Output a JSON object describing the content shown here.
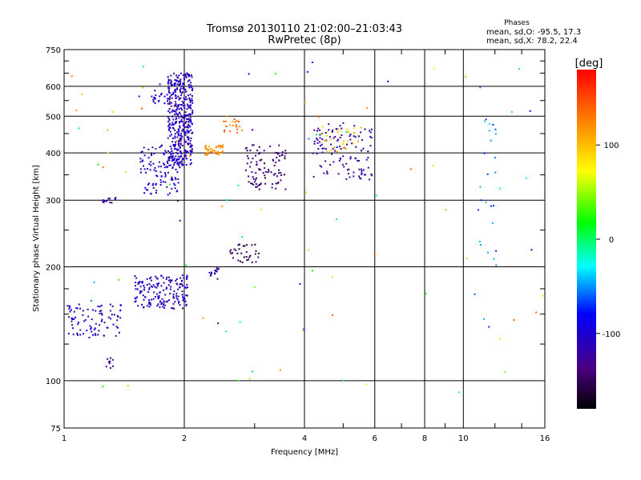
{
  "chart_data": {
    "type": "scatter",
    "title": "Tromsø 20130110 21:02:00–21:03:43",
    "subtitle": "RwPretec (8p)",
    "xlabel": "Frequency [MHz]",
    "ylabel": "Stationary phase Virtual Height [km]",
    "x_scale": "log",
    "y_scale": "log",
    "xlim": [
      1,
      16
    ],
    "ylim": [
      75,
      750
    ],
    "grid": true,
    "x_ticks": [
      1,
      2,
      4,
      6,
      8,
      10,
      16
    ],
    "x_tick_labels": [
      "1",
      "2",
      "4",
      "6",
      "8",
      "10",
      "16"
    ],
    "y_ticks": [
      75,
      100,
      200,
      300,
      400,
      500,
      600,
      750
    ],
    "y_tick_labels": [
      "75",
      "100",
      "200",
      "300",
      "400",
      "500",
      "600",
      "750"
    ],
    "phase_stats": {
      "heading": "Phases",
      "line_o": "mean, sd,O: -95.5, 17.3",
      "line_x": "mean, sd,X:  78.2, 22.4"
    },
    "colorbar": {
      "label": "[deg]",
      "range": [
        -180,
        180
      ],
      "ticks": [
        100,
        0,
        -100
      ],
      "tick_labels": [
        "100",
        "0",
        "-100"
      ]
    },
    "clusters": [
      {
        "x_range": [
          1.82,
          2.1
        ],
        "y_range": [
          370,
          650
        ],
        "phase": -110,
        "count": 420
      },
      {
        "x_range": [
          1.55,
          1.95
        ],
        "y_range": [
          310,
          420
        ],
        "phase": -105,
        "count": 110
      },
      {
        "x_range": [
          1.65,
          1.85
        ],
        "y_range": [
          540,
          620
        ],
        "phase": -105,
        "count": 25
      },
      {
        "x_range": [
          1.5,
          2.05
        ],
        "y_range": [
          155,
          190
        ],
        "phase": -108,
        "count": 170
      },
      {
        "x_range": [
          1.02,
          1.4
        ],
        "y_range": [
          130,
          160
        ],
        "phase": -110,
        "count": 90
      },
      {
        "x_range": [
          1.25,
          1.35
        ],
        "y_range": [
          295,
          305
        ],
        "phase": -115,
        "count": 12
      },
      {
        "x_range": [
          1.27,
          1.33
        ],
        "y_range": [
          108,
          115
        ],
        "phase": -115,
        "count": 10
      },
      {
        "x_range": [
          2.25,
          2.5
        ],
        "y_range": [
          395,
          420
        ],
        "phase": 120,
        "count": 45
      },
      {
        "x_range": [
          2.5,
          2.8
        ],
        "y_range": [
          450,
          500
        ],
        "phase": 130,
        "count": 20
      },
      {
        "x_range": [
          2.85,
          3.6
        ],
        "y_range": [
          320,
          420
        ],
        "phase": -140,
        "count": 95
      },
      {
        "x_range": [
          2.6,
          3.1
        ],
        "y_range": [
          205,
          230
        ],
        "phase": -150,
        "count": 35
      },
      {
        "x_range": [
          2.3,
          2.45
        ],
        "y_range": [
          185,
          200
        ],
        "phase": -125,
        "count": 15
      },
      {
        "x_range": [
          4.2,
          5.9
        ],
        "y_range": [
          340,
          480
        ],
        "phase": -120,
        "count": 120
      },
      {
        "x_range": [
          4.4,
          5.6
        ],
        "y_range": [
          400,
          470
        ],
        "phase": 100,
        "count": 30
      },
      {
        "x_range": [
          10.9,
          12.1
        ],
        "y_range": [
          200,
          620
        ],
        "phase": -60,
        "count": 25
      },
      {
        "x_range": [
          1.0,
          16.0
        ],
        "y_range": [
          80,
          700
        ],
        "phase": 30,
        "count": 90
      }
    ]
  }
}
